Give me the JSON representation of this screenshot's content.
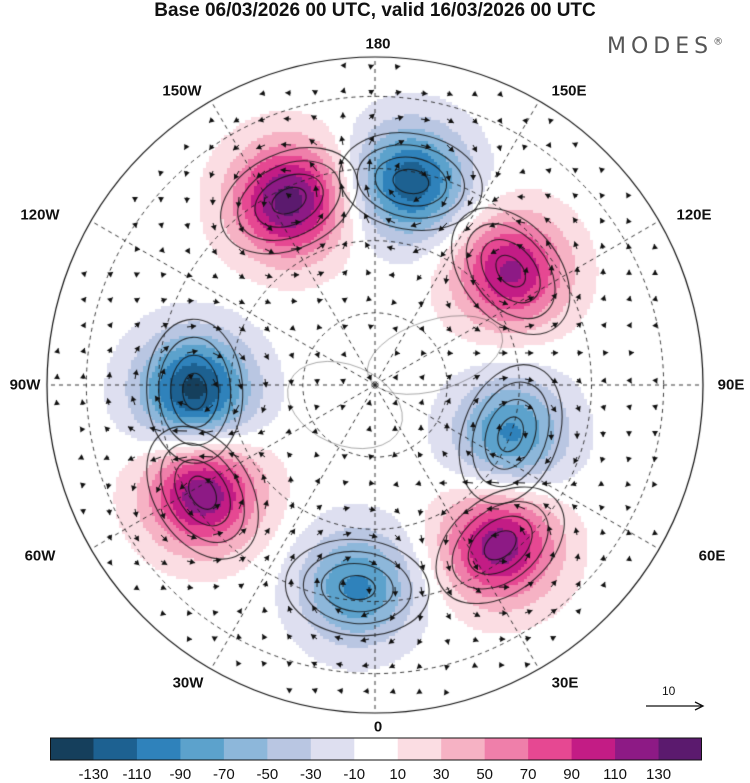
{
  "title": "Base 06/03/2026 00 UTC, valid 16/03/2026 00 UTC",
  "brand": "MODES",
  "brand_mark": "®",
  "longitude_labels": {
    "top": "180",
    "bottom": "0",
    "left": "90W",
    "right": "90E",
    "upper_left_1": "150W",
    "upper_left_2": "120W",
    "upper_right_1": "150E",
    "upper_right_2": "120E",
    "lower_left_1": "60W",
    "lower_left_2": "30W",
    "lower_right_1": "60E",
    "lower_right_2": "30E"
  },
  "reference_vector": {
    "label": "10",
    "magnitude": 10
  },
  "colorbar": {
    "colors": [
      "#153f5c",
      "#1d6191",
      "#2f82bb",
      "#5ca2cc",
      "#8db7da",
      "#b9c6e2",
      "#dedff0",
      "#ffffff",
      "#fbdde3",
      "#f6b2c4",
      "#ef7faa",
      "#e64892",
      "#c31c85",
      "#8d1a85",
      "#5b1a6e"
    ],
    "ticks": [
      "-130",
      "-110",
      "-90",
      "-70",
      "-50",
      "-30",
      "-10",
      "10",
      "30",
      "50",
      "70",
      "90",
      "110",
      "130"
    ]
  },
  "anomalies": [
    {
      "name": "pacific-high",
      "lon": -155,
      "r": 0.62,
      "value": 140
    },
    {
      "name": "aleutian-low",
      "lon": 170,
      "r": 0.63,
      "value": -125
    },
    {
      "name": "siberia-high",
      "lon": 130,
      "r": 0.54,
      "value": 115
    },
    {
      "name": "asia-low",
      "lon": 70,
      "r": 0.44,
      "value": -95
    },
    {
      "name": "canada-low",
      "lon": -88,
      "r": 0.55,
      "value": -140
    },
    {
      "name": "atlantic-high",
      "lon": -58,
      "r": 0.62,
      "value": 130
    },
    {
      "name": "atlantic-low",
      "lon": -5,
      "r": 0.62,
      "value": -95
    },
    {
      "name": "europe-high",
      "lon": 38,
      "r": 0.62,
      "value": 125
    }
  ]
}
